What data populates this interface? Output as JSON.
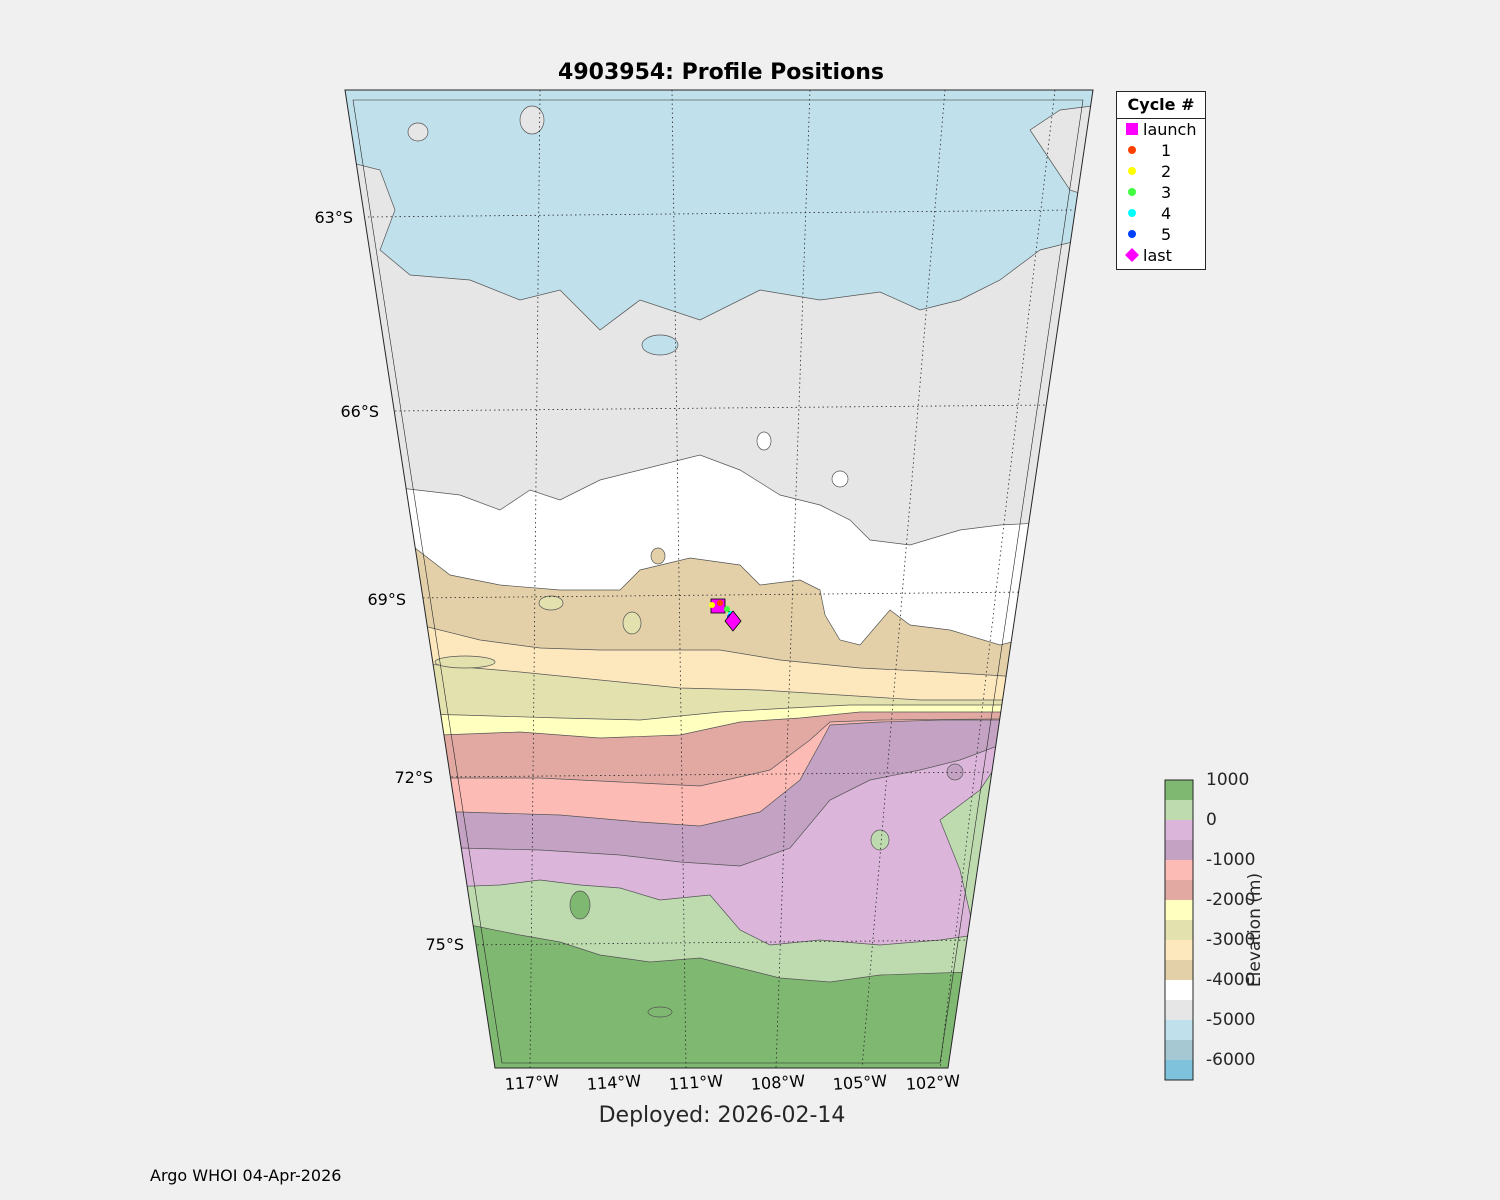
{
  "title": "4903954: Profile Positions",
  "deployed": "Deployed: 2026-02-14",
  "credit": "Argo WHOI 04-Apr-2026",
  "lat_labels": [
    "63°S",
    "66°S",
    "69°S",
    "72°S",
    "75°S"
  ],
  "lon_labels": [
    "117°W",
    "114°W",
    "111°W",
    "108°W",
    "105°W",
    "102°W"
  ],
  "legend": {
    "title": "Cycle #",
    "entries": [
      {
        "label": "launch",
        "color": "#ff00ff",
        "marker": "square"
      },
      {
        "label": "1",
        "color": "#ff4000",
        "marker": "dot"
      },
      {
        "label": "2",
        "color": "#ffff00",
        "marker": "dot"
      },
      {
        "label": "3",
        "color": "#40ff40",
        "marker": "dot"
      },
      {
        "label": "4",
        "color": "#00ffff",
        "marker": "dot"
      },
      {
        "label": "5",
        "color": "#0040ff",
        "marker": "dot"
      },
      {
        "label": "last",
        "color": "#ff00ff",
        "marker": "diamond"
      }
    ]
  },
  "colorbar": {
    "label": "Elevation (m)",
    "ticks": [
      "1000",
      "0",
      "-1000",
      "-2000",
      "-3000",
      "-4000",
      "-5000",
      "-6000"
    ],
    "colors": [
      "#7fb870",
      "#bedbb0",
      "#dbb5da",
      "#c4a2c4",
      "#fdbbb6",
      "#e2a9a3",
      "#ffffc0",
      "#e3e2ae",
      "#fde8bd",
      "#e3d0a8",
      "#ffffff",
      "#e6e6e6",
      "#c0e0ec",
      "#a6c8d2",
      "#7fc2dc"
    ]
  }
}
